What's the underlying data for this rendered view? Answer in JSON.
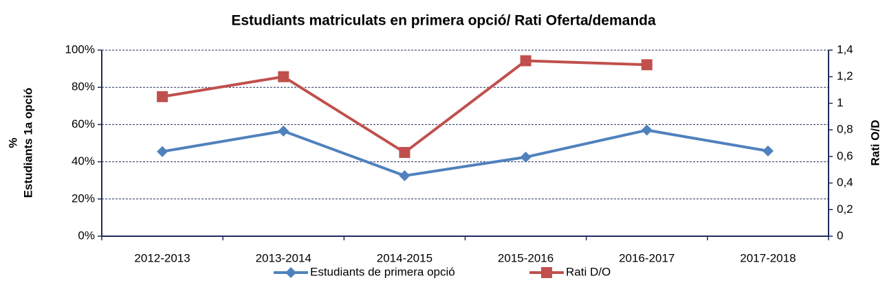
{
  "chart_data": {
    "type": "line",
    "title": "Estudiants matriculats en primera opció/ Rati Oferta/demanda",
    "ylabel": [
      "%",
      "Estudiants 1a opció"
    ],
    "y2label": "Rati O/D",
    "categories": [
      "2012-2013",
      "2013-2014",
      "2014-2015",
      "2015-2016",
      "2016-2017",
      "2017-2018"
    ],
    "series": [
      {
        "name": "Estudiants de primera opció",
        "color": "#4f81bd",
        "marker": "diamond",
        "values": [
          45.5,
          56.5,
          32.5,
          42.5,
          57,
          45.8
        ]
      },
      {
        "name": "Rati D/O",
        "color": "#c0504d",
        "marker": "square",
        "axis": "y2",
        "values": [
          1.05,
          1.2,
          0.63,
          1.32,
          1.29,
          null
        ]
      }
    ],
    "ylim": [
      0,
      100
    ],
    "yticks": [
      {
        "value": 0,
        "label": "0%"
      },
      {
        "value": 20,
        "label": "20%"
      },
      {
        "value": 40,
        "label": "40%"
      },
      {
        "value": 60,
        "label": "60%"
      },
      {
        "value": 80,
        "label": "80%"
      },
      {
        "value": 100,
        "label": "100%"
      }
    ],
    "y2lim": [
      0,
      1.4
    ],
    "y2ticks": [
      0,
      {
        "value": 0.2,
        "label": "0,2"
      },
      {
        "value": 0.4,
        "label": "0,4"
      },
      {
        "value": 0.6,
        "label": "0,6"
      },
      {
        "value": 0.8,
        "label": "0,8"
      },
      1,
      {
        "value": 1.2,
        "label": "1,2"
      },
      {
        "value": 1.4,
        "label": "1,4"
      }
    ],
    "grid": true,
    "legend": "bottom"
  }
}
